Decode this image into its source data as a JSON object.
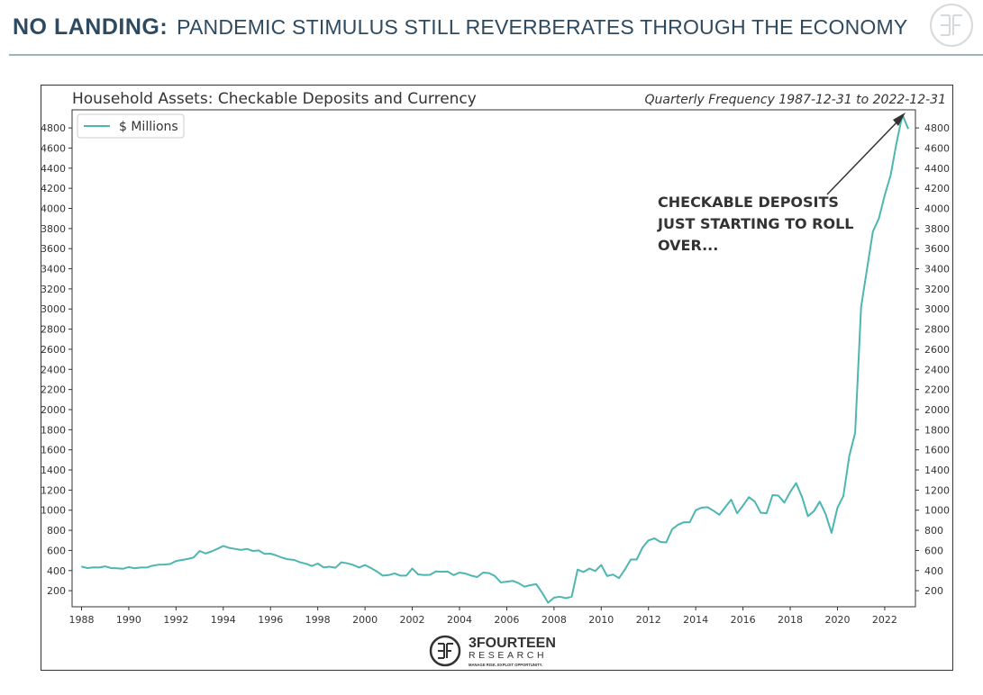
{
  "header": {
    "title_bold": "NO LANDING:",
    "title_rest": "PANDEMIC STIMULUS STILL REVERBERATES THROUGH THE ECONOMY"
  },
  "brand": {
    "name": "3FOURTEEN",
    "sub": "RESEARCH",
    "tagline": "MANAGE RISK. EXPLOIT OPPORTUNITY.",
    "color": "#333333"
  },
  "colors": {
    "header": "#2e4a60",
    "rule": "#9fb3bc",
    "series": "#4db6b0"
  },
  "annotation": {
    "lines": [
      "CHECKABLE DEPOSITS",
      "JUST STARTING TO ROLL",
      "OVER..."
    ]
  },
  "chart_data": {
    "type": "line",
    "title": "Household Assets: Checkable Deposits and Currency",
    "subtitle": "Quarterly Frequency 1987-12-31 to 2022-12-31",
    "legend": {
      "label": "$ Millions",
      "placement": "top-left"
    },
    "xlim": [
      1987.6,
      2023.3
    ],
    "ylim": [
      40,
      4980
    ],
    "x_ticks": [
      1988,
      1990,
      1992,
      1994,
      1996,
      1998,
      2000,
      2002,
      2004,
      2006,
      2008,
      2010,
      2012,
      2014,
      2016,
      2018,
      2020,
      2022
    ],
    "y_ticks": [
      200,
      400,
      600,
      800,
      1000,
      1200,
      1400,
      1600,
      1800,
      2000,
      2200,
      2400,
      2600,
      2800,
      3000,
      3200,
      3400,
      3600,
      3800,
      4000,
      4200,
      4400,
      4600,
      4800
    ],
    "y_axes": "left-and-right",
    "grid": false,
    "series": [
      {
        "name": "$ Millions",
        "x": [
          1987.99,
          1988.25,
          1988.5,
          1988.75,
          1989.0,
          1989.25,
          1989.5,
          1989.75,
          1990.0,
          1990.25,
          1990.5,
          1990.75,
          1991.0,
          1991.25,
          1991.5,
          1991.75,
          1992.0,
          1992.25,
          1992.5,
          1992.75,
          1993.0,
          1993.25,
          1993.5,
          1993.75,
          1994.0,
          1994.25,
          1994.5,
          1994.75,
          1995.0,
          1995.25,
          1995.5,
          1995.75,
          1996.0,
          1996.25,
          1996.5,
          1996.75,
          1997.0,
          1997.25,
          1997.5,
          1997.75,
          1998.0,
          1998.25,
          1998.5,
          1998.75,
          1999.0,
          1999.25,
          1999.5,
          1999.75,
          2000.0,
          2000.25,
          2000.5,
          2000.75,
          2001.0,
          2001.25,
          2001.5,
          2001.75,
          2002.0,
          2002.25,
          2002.5,
          2002.75,
          2003.0,
          2003.25,
          2003.5,
          2003.75,
          2004.0,
          2004.25,
          2004.5,
          2004.75,
          2005.0,
          2005.25,
          2005.5,
          2005.75,
          2006.0,
          2006.25,
          2006.5,
          2006.75,
          2007.0,
          2007.25,
          2007.5,
          2007.75,
          2008.0,
          2008.25,
          2008.5,
          2008.75,
          2009.0,
          2009.25,
          2009.5,
          2009.75,
          2010.0,
          2010.25,
          2010.5,
          2010.75,
          2011.0,
          2011.25,
          2011.5,
          2011.75,
          2012.0,
          2012.25,
          2012.5,
          2012.75,
          2013.0,
          2013.25,
          2013.5,
          2013.75,
          2014.0,
          2014.25,
          2014.5,
          2014.75,
          2015.0,
          2015.25,
          2015.5,
          2015.75,
          2016.0,
          2016.25,
          2016.5,
          2016.75,
          2017.0,
          2017.25,
          2017.5,
          2017.75,
          2018.0,
          2018.25,
          2018.5,
          2018.75,
          2019.0,
          2019.25,
          2019.5,
          2019.75,
          2020.0,
          2020.25,
          2020.5,
          2020.75,
          2021.0,
          2021.25,
          2021.5,
          2021.75,
          2022.0,
          2022.25,
          2022.5,
          2022.75,
          2023.0
        ],
        "y": [
          440,
          425,
          432,
          430,
          442,
          425,
          422,
          418,
          435,
          422,
          430,
          430,
          448,
          458,
          460,
          465,
          495,
          505,
          515,
          530,
          595,
          570,
          590,
          615,
          645,
          625,
          615,
          605,
          615,
          595,
          600,
          565,
          568,
          550,
          528,
          512,
          505,
          482,
          468,
          445,
          470,
          432,
          438,
          428,
          482,
          472,
          455,
          430,
          455,
          425,
          392,
          350,
          355,
          372,
          350,
          350,
          420,
          362,
          355,
          358,
          392,
          388,
          390,
          355,
          380,
          370,
          350,
          335,
          380,
          375,
          345,
          282,
          290,
          298,
          275,
          240,
          255,
          265,
          180,
          80,
          130,
          140,
          125,
          140,
          410,
          385,
          420,
          395,
          455,
          345,
          360,
          325,
          410,
          510,
          510,
          630,
          700,
          720,
          685,
          680,
          810,
          855,
          880,
          880,
          1000,
          1025,
          1030,
          995,
          955,
          1030,
          1105,
          970,
          1045,
          1130,
          1085,
          975,
          970,
          1150,
          1145,
          1075,
          1180,
          1270,
          1130,
          940,
          990,
          1085,
          960,
          775,
          1025,
          1140,
          1540,
          1770,
          3020,
          3400,
          3770,
          3900,
          4130,
          4330,
          4650,
          4930,
          4790
        ]
      }
    ]
  }
}
